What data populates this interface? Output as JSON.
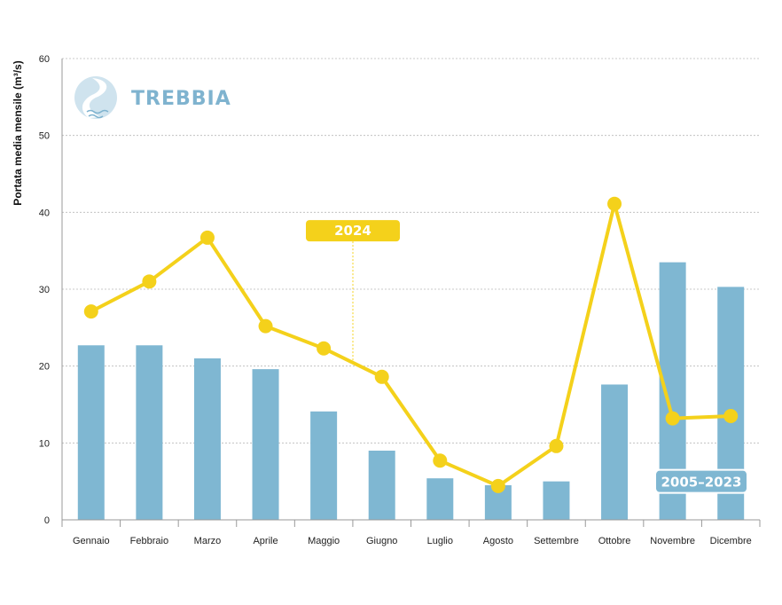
{
  "colors": {
    "bar": "#7fb7d2",
    "line": "#f4d11b",
    "grid": "#b8b8b8",
    "axis": "#999999",
    "logo": "#7fb3cf"
  },
  "logo": {
    "text": "TREBBIA",
    "icon": "river-drop-icon"
  },
  "chart_data": {
    "type": "bar",
    "ylabel": "Portata media mensile (m³/s)",
    "ylim": [
      0,
      60
    ],
    "yticks": [
      0,
      10,
      20,
      30,
      40,
      50,
      60
    ],
    "grid": true,
    "categories": [
      "Gennaio",
      "Febbraio",
      "Marzo",
      "Aprile",
      "Maggio",
      "Giugno",
      "Luglio",
      "Agosto",
      "Settembre",
      "Ottobre",
      "Novembre",
      "Dicembre"
    ],
    "series": [
      {
        "name": "2005–2023",
        "type": "bar",
        "values": [
          22.7,
          22.7,
          21.0,
          19.6,
          14.1,
          9.0,
          5.4,
          4.5,
          5.0,
          17.6,
          33.5,
          30.3
        ]
      },
      {
        "name": "2024",
        "type": "line",
        "values": [
          27.1,
          31.0,
          36.7,
          25.2,
          22.3,
          18.6,
          7.7,
          4.4,
          9.6,
          41.1,
          13.2,
          13.5
        ]
      }
    ]
  }
}
